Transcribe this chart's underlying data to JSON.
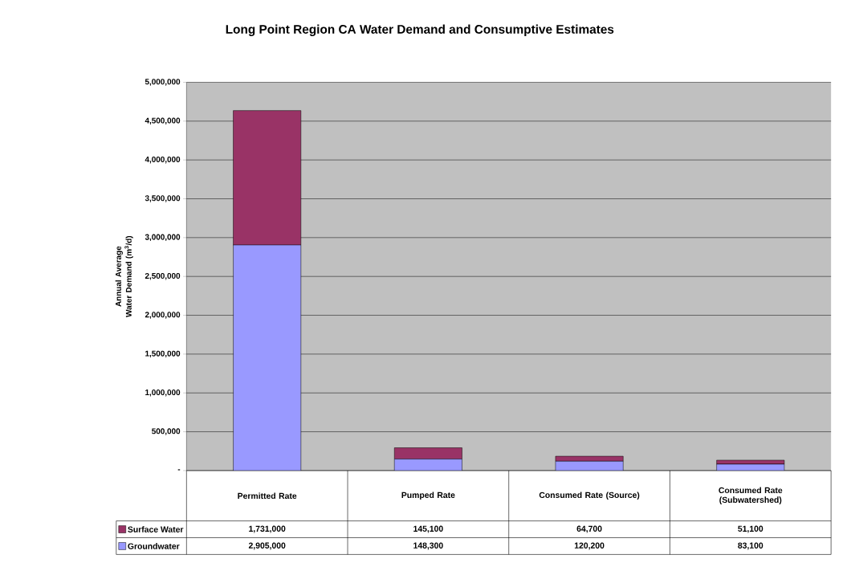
{
  "chart_data": {
    "type": "bar",
    "stacked": true,
    "title": "Long Point Region CA Water Demand and Consumptive Estimates",
    "ylabel": "Annual Average Water Demand (m$^{3}$/d)",
    "categories": [
      "Permitted Rate",
      "Pumped Rate",
      "Consumed Rate (Source)",
      "Consumed Rate (Subwatershed)"
    ],
    "series": [
      {
        "name": "Groundwater",
        "color": "#9999ff",
        "values": [
          2905000,
          148300,
          120200,
          83100
        ],
        "value_labels": [
          "2,905,000",
          "148,300",
          "120,200",
          "83,100"
        ]
      },
      {
        "name": "Surface Water",
        "color": "#993366",
        "values": [
          1731000,
          145100,
          64700,
          51100
        ],
        "value_labels": [
          "1,731,000",
          "145,100",
          "64,700",
          "51,100"
        ]
      }
    ],
    "ylim": [
      0,
      5000000
    ],
    "yticks": [
      {
        "value": 0,
        "label": "-"
      },
      {
        "value": 500000,
        "label": "500,000"
      },
      {
        "value": 1000000,
        "label": "1,000,000"
      },
      {
        "value": 1500000,
        "label": "1,500,000"
      },
      {
        "value": 2000000,
        "label": "2,000,000"
      },
      {
        "value": 2500000,
        "label": "2,500,000"
      },
      {
        "value": 3000000,
        "label": "3,000,000"
      },
      {
        "value": 3500000,
        "label": "3,500,000"
      },
      {
        "value": 4000000,
        "label": "4,000,000"
      },
      {
        "value": 4500000,
        "label": "4,500,000"
      },
      {
        "value": 5000000,
        "label": "5,000,000"
      }
    ],
    "grid": "y",
    "legend": "bottom"
  }
}
